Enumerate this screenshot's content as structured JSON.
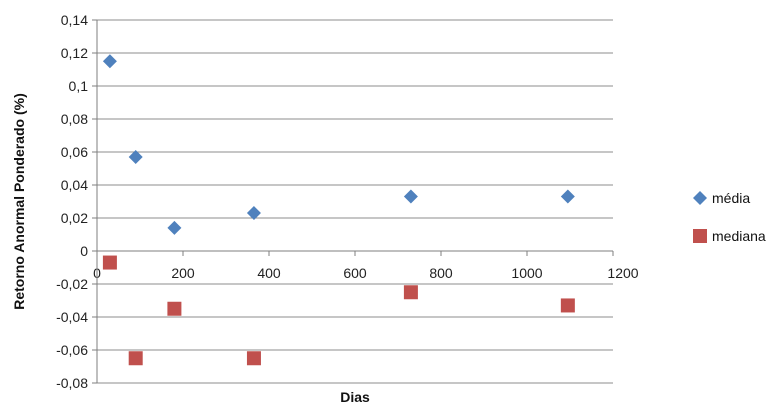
{
  "chart_data": {
    "type": "scatter",
    "xlabel": "Dias",
    "ylabel": "Retorno Anormal Ponderado (%)",
    "xlim": [
      0,
      1200
    ],
    "ylim": [
      -0.08,
      0.14
    ],
    "x_ticks": [
      0,
      200,
      400,
      600,
      800,
      1000,
      1200
    ],
    "x_tick_labels": [
      "0",
      "200",
      "400",
      "600",
      "800",
      "1000",
      "1200"
    ],
    "y_ticks": [
      -0.08,
      -0.06,
      -0.04,
      -0.02,
      0,
      0.02,
      0.04,
      0.06,
      0.08,
      0.1,
      0.12,
      0.14
    ],
    "y_tick_labels": [
      "-0,08",
      "-0,06",
      "-0,04",
      "-0,02",
      "0",
      "0,02",
      "0,04",
      "0,06",
      "0,08",
      "0,1",
      "0,12",
      "0,14"
    ],
    "grid": "horizontal",
    "legend_position": "right",
    "series": [
      {
        "name": "média",
        "marker": "diamond",
        "color": "#4F81BD",
        "points": [
          {
            "x": 30,
            "y": 0.115
          },
          {
            "x": 90,
            "y": 0.057
          },
          {
            "x": 180,
            "y": 0.014
          },
          {
            "x": 365,
            "y": 0.023
          },
          {
            "x": 730,
            "y": 0.033
          },
          {
            "x": 1095,
            "y": 0.033
          }
        ]
      },
      {
        "name": "mediana",
        "marker": "square",
        "color": "#C0504D",
        "points": [
          {
            "x": 30,
            "y": -0.007
          },
          {
            "x": 90,
            "y": -0.065
          },
          {
            "x": 180,
            "y": -0.035
          },
          {
            "x": 365,
            "y": -0.065
          },
          {
            "x": 730,
            "y": -0.025
          },
          {
            "x": 1095,
            "y": -0.033
          }
        ]
      }
    ]
  }
}
